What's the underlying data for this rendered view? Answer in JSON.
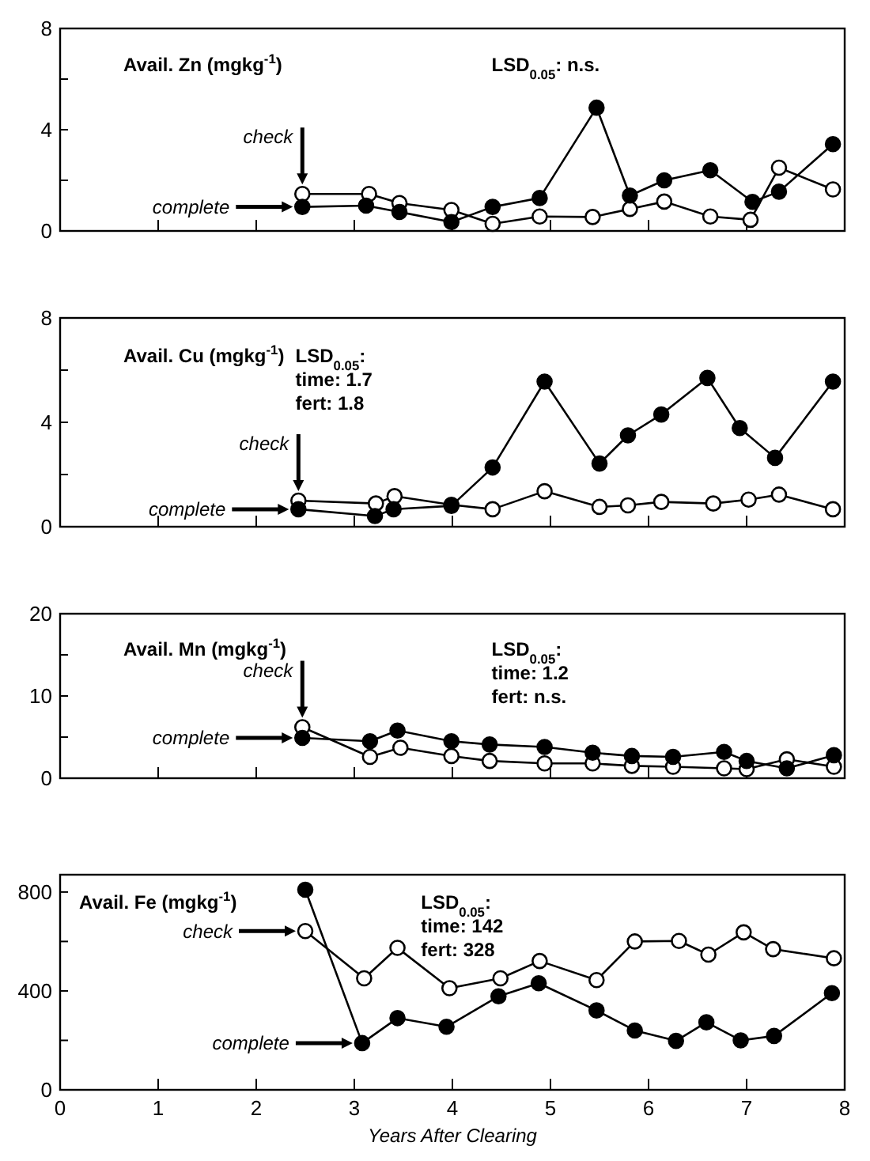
{
  "chart_data": [
    {
      "type": "line",
      "title": "Avail. Zn (mgkg$^{-1}$)",
      "annotations": [
        "LSD$_{0.05}$: n.s."
      ],
      "xlim": [
        0,
        8
      ],
      "xticks": [
        0,
        1,
        2,
        3,
        4,
        5,
        6,
        7,
        8
      ],
      "ylim": [
        0,
        8
      ],
      "yticks": [
        0,
        {
          "value": 2,
          "label": null
        },
        4,
        {
          "value": 6,
          "label": null
        },
        8
      ],
      "tick_labels": "y",
      "marker": "circle",
      "legend": "left",
      "grid": false,
      "series": [
        {
          "name": "check",
          "color": "#ffffff",
          "x": [
            2.47,
            3.15,
            3.46,
            3.99,
            4.41,
            4.89,
            5.43,
            5.81,
            6.16,
            6.63,
            7.04,
            7.33,
            7.88
          ],
          "values": [
            1.46,
            1.46,
            1.1,
            0.83,
            0.28,
            0.57,
            0.55,
            0.87,
            1.16,
            0.57,
            0.44,
            2.5,
            1.64
          ]
        },
        {
          "name": "complete",
          "color": "#000000",
          "x": [
            2.47,
            3.12,
            3.46,
            3.99,
            4.41,
            4.89,
            5.47,
            5.81,
            6.16,
            6.63,
            7.06,
            7.33,
            7.88
          ],
          "values": [
            0.95,
            1.0,
            0.75,
            0.35,
            0.95,
            1.3,
            4.87,
            1.4,
            2.0,
            2.4,
            1.15,
            1.55,
            3.43
          ]
        }
      ]
    },
    {
      "type": "line",
      "title": "Avail. Cu (mgkg$^{-1}$)",
      "annotations": [
        "LSD$_{0.05}$:",
        "time: 1.7",
        "fert: 1.8"
      ],
      "xlim": [
        0,
        8
      ],
      "xticks": [
        0,
        1,
        2,
        3,
        4,
        5,
        6,
        7,
        8
      ],
      "ylim": [
        0,
        8
      ],
      "yticks": [
        0,
        {
          "value": 2,
          "label": null
        },
        4,
        {
          "value": 6,
          "label": null
        },
        8
      ],
      "tick_labels": "y",
      "marker": "circle",
      "legend": "left",
      "grid": false,
      "series": [
        {
          "name": "check",
          "color": "#ffffff",
          "x": [
            2.43,
            3.22,
            3.41,
            3.99,
            4.41,
            4.94,
            5.5,
            5.79,
            6.13,
            6.66,
            7.02,
            7.33,
            7.88
          ],
          "values": [
            1.0,
            0.89,
            1.17,
            0.84,
            0.67,
            1.36,
            0.76,
            0.82,
            0.95,
            0.89,
            1.04,
            1.23,
            0.67
          ]
        },
        {
          "name": "complete",
          "color": "#000000",
          "x": [
            2.43,
            3.21,
            3.4,
            3.99,
            4.41,
            4.94,
            5.5,
            5.79,
            6.13,
            6.6,
            6.93,
            7.29,
            7.88
          ],
          "values": [
            0.67,
            0.41,
            0.67,
            0.8,
            2.27,
            5.56,
            2.42,
            3.5,
            4.3,
            5.7,
            3.78,
            2.64,
            5.56
          ]
        }
      ]
    },
    {
      "type": "line",
      "title": "Avail. Mn (mgkg$^{-1}$)",
      "annotations": [
        "LSD$_{0.05}$:",
        "time: 1.2",
        "fert: n.s."
      ],
      "xlim": [
        0,
        8
      ],
      "xticks": [
        0,
        1,
        2,
        3,
        4,
        5,
        6,
        7,
        8
      ],
      "ylim": [
        0,
        20
      ],
      "yticks": [
        0,
        {
          "value": 5,
          "label": null
        },
        10,
        {
          "value": 15,
          "label": null
        },
        20
      ],
      "tick_labels": "y",
      "marker": "circle",
      "legend": "left",
      "grid": false,
      "series": [
        {
          "name": "check",
          "color": "#ffffff",
          "x": [
            2.47,
            3.16,
            3.47,
            3.99,
            4.38,
            4.94,
            5.43,
            5.83,
            6.25,
            6.77,
            7.0,
            7.41,
            7.89
          ],
          "values": [
            6.2,
            2.6,
            3.7,
            2.7,
            2.1,
            1.8,
            1.8,
            1.5,
            1.4,
            1.2,
            1.1,
            2.3,
            1.4
          ]
        },
        {
          "name": "complete",
          "color": "#000000",
          "x": [
            2.47,
            3.16,
            3.44,
            3.99,
            4.38,
            4.94,
            5.43,
            5.83,
            6.25,
            6.77,
            7.0,
            7.41,
            7.89
          ],
          "values": [
            4.9,
            4.5,
            5.8,
            4.5,
            4.1,
            3.8,
            3.1,
            2.7,
            2.6,
            3.2,
            2.1,
            1.2,
            2.8
          ]
        }
      ]
    },
    {
      "type": "line",
      "title": "Avail. Fe (mgkg$^{-1}$)",
      "xlabel": "Years After Clearing",
      "annotations": [
        "LSD$_{0.05}$:",
        "time: 142",
        "fert: 328"
      ],
      "xlim": [
        0,
        8
      ],
      "xticks": [
        0,
        1,
        2,
        3,
        4,
        5,
        6,
        7,
        8
      ],
      "ylim": [
        0,
        870
      ],
      "yticks": [
        0,
        {
          "value": 200,
          "label": null
        },
        400,
        {
          "value": 600,
          "label": null
        },
        800
      ],
      "marker": "circle",
      "legend": "left",
      "grid": false,
      "series": [
        {
          "name": "check",
          "color": "#ffffff",
          "x": [
            2.5,
            3.1,
            3.44,
            3.97,
            4.49,
            4.89,
            5.47,
            5.86,
            6.31,
            6.61,
            6.97,
            7.27,
            7.89
          ],
          "values": [
            642,
            451,
            574,
            411,
            451,
            521,
            444,
            600,
            602,
            547,
            637,
            569,
            532
          ]
        },
        {
          "name": "complete",
          "color": "#000000",
          "x": [
            2.5,
            3.08,
            3.44,
            3.94,
            4.47,
            4.88,
            5.47,
            5.86,
            6.28,
            6.59,
            6.94,
            7.28,
            7.87
          ],
          "values": [
            809,
            189,
            290,
            255,
            378,
            431,
            321,
            240,
            198,
            273,
            200,
            218,
            391
          ]
        }
      ]
    }
  ]
}
